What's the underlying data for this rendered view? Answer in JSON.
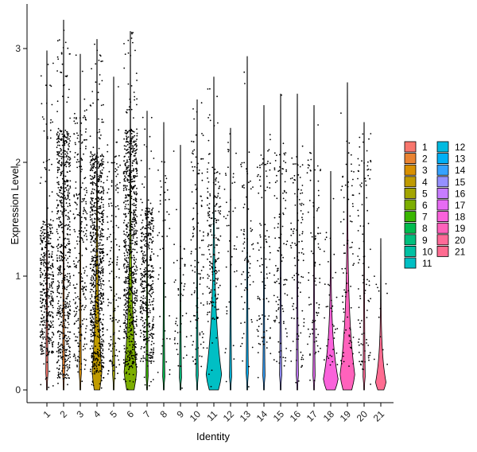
{
  "chart_data": {
    "type": "violin",
    "xlabel": "Identity",
    "ylabel": "Expression Level",
    "ylim": [
      -0.15,
      3.4
    ],
    "yticks": [
      0,
      1,
      2,
      3
    ],
    "grid": false,
    "legend_position": "right",
    "categories": [
      "1",
      "2",
      "3",
      "4",
      "5",
      "6",
      "7",
      "8",
      "9",
      "10",
      "11",
      "12",
      "13",
      "14",
      "15",
      "16",
      "17",
      "18",
      "19",
      "20",
      "21"
    ],
    "colors": [
      "#F8766D",
      "#EA8331",
      "#D89000",
      "#C09B00",
      "#A3A500",
      "#7CAE00",
      "#39B600",
      "#00BB4E",
      "#00BF7D",
      "#00C1A3",
      "#00BFC4",
      "#00BAE0",
      "#00B0F6",
      "#35A2FF",
      "#9590FF",
      "#C77CFF",
      "#E76BF3",
      "#FA62DB",
      "#FF62BC",
      "#FF6A98",
      "#FF6C91"
    ],
    "series": [
      {
        "name": "1",
        "max": 2.98,
        "violin_width": 0.02,
        "point_count": 430,
        "dense_low": 0.3,
        "dense_high": 1.5
      },
      {
        "name": "2",
        "max": 3.25,
        "violin_width": 0.02,
        "point_count": 650,
        "dense_low": 0.1,
        "dense_high": 2.3
      },
      {
        "name": "3",
        "max": 2.95,
        "violin_width": 0.02,
        "point_count": 260,
        "dense_low": 0.2,
        "dense_high": 2.4
      },
      {
        "name": "4",
        "max": 3.08,
        "violin_width": 0.55,
        "point_count": 800,
        "dense_low": 0.15,
        "dense_high": 2.1
      },
      {
        "name": "5",
        "max": 2.75,
        "violin_width": 0.02,
        "point_count": 150,
        "dense_low": 0.1,
        "dense_high": 2.2
      },
      {
        "name": "6",
        "max": 3.15,
        "violin_width": 0.75,
        "point_count": 780,
        "dense_low": 0.2,
        "dense_high": 2.3
      },
      {
        "name": "7",
        "max": 2.45,
        "violin_width": 0.02,
        "point_count": 420,
        "dense_low": 0.25,
        "dense_high": 1.6
      },
      {
        "name": "8",
        "max": 2.35,
        "violin_width": 0.02,
        "point_count": 45,
        "dense_low": 0.1,
        "dense_high": 2.0
      },
      {
        "name": "9",
        "max": 2.15,
        "violin_width": 0.02,
        "point_count": 50,
        "dense_low": 0.2,
        "dense_high": 1.3
      },
      {
        "name": "10",
        "max": 2.55,
        "violin_width": 0.02,
        "point_count": 120,
        "dense_low": 0.2,
        "dense_high": 2.3
      },
      {
        "name": "11",
        "max": 2.75,
        "violin_width": 0.95,
        "point_count": 190,
        "dense_low": 0.6,
        "dense_high": 2.0
      },
      {
        "name": "12",
        "max": 2.3,
        "violin_width": 0.02,
        "point_count": 45,
        "dense_low": 0.3,
        "dense_high": 2.2
      },
      {
        "name": "13",
        "max": 2.93,
        "violin_width": 0.02,
        "point_count": 80,
        "dense_low": 0.3,
        "dense_high": 2.0
      },
      {
        "name": "14",
        "max": 2.5,
        "violin_width": 0.02,
        "point_count": 100,
        "dense_low": 0.3,
        "dense_high": 2.0
      },
      {
        "name": "15",
        "max": 2.6,
        "violin_width": 0.02,
        "point_count": 110,
        "dense_low": 0.2,
        "dense_high": 2.1
      },
      {
        "name": "16",
        "max": 2.6,
        "violin_width": 0.02,
        "point_count": 110,
        "dense_low": 0.2,
        "dense_high": 2.0
      },
      {
        "name": "17",
        "max": 2.5,
        "violin_width": 0.02,
        "point_count": 90,
        "dense_low": 0.3,
        "dense_high": 2.1
      },
      {
        "name": "18",
        "max": 1.92,
        "violin_width": 0.9,
        "point_count": 40,
        "dense_low": 0.2,
        "dense_high": 1.2
      },
      {
        "name": "19",
        "max": 2.7,
        "violin_width": 0.9,
        "point_count": 80,
        "dense_low": 0.2,
        "dense_high": 2.2
      },
      {
        "name": "20",
        "max": 2.35,
        "violin_width": 0.02,
        "point_count": 100,
        "dense_low": 0.2,
        "dense_high": 2.2
      },
      {
        "name": "21",
        "max": 1.33,
        "violin_width": 0.6,
        "point_count": 12,
        "dense_low": 0.1,
        "dense_high": 1.0
      }
    ]
  }
}
